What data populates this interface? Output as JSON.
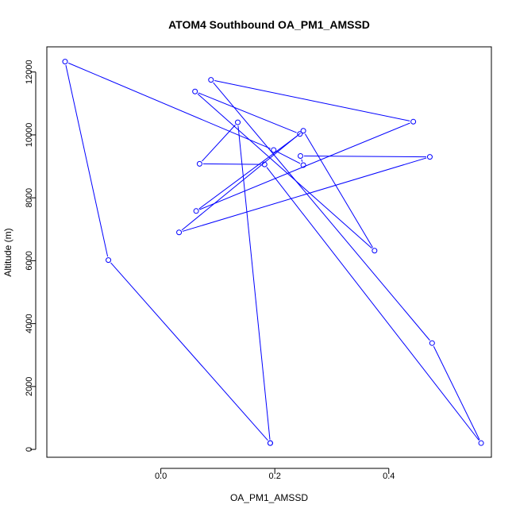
{
  "chart_data": {
    "type": "line",
    "title": "ATOM4 Southbound OA_PM1_AMSSD",
    "xlabel": "OA_PM1_AMSSD",
    "ylabel": "Altitude (m)",
    "xlim": [
      -0.2,
      0.58
    ],
    "ylim": [
      -250,
      12800
    ],
    "xticks": [
      0.0,
      0.2,
      0.4
    ],
    "xtick_labels": [
      "0.0",
      "0.2",
      "0.4"
    ],
    "yticks": [
      0,
      2000,
      4000,
      6000,
      8000,
      10000,
      12000
    ],
    "ytick_labels": [
      "0",
      "2000",
      "4000",
      "6000",
      "8000",
      "10000",
      "12000"
    ],
    "grid": false,
    "series": [
      {
        "color": "#0000ff",
        "marker": "open-circle",
        "points": [
          {
            "x": 0.192,
            "y": 200
          },
          {
            "x": 0.135,
            "y": 10400
          },
          {
            "x": 0.068,
            "y": 9080
          },
          {
            "x": 0.182,
            "y": 9060
          },
          {
            "x": 0.562,
            "y": 200
          },
          {
            "x": 0.476,
            "y": 3380
          },
          {
            "x": 0.088,
            "y": 11750
          },
          {
            "x": 0.443,
            "y": 10420
          },
          {
            "x": 0.062,
            "y": 7580
          },
          {
            "x": 0.244,
            "y": 10030
          },
          {
            "x": 0.06,
            "y": 11380
          },
          {
            "x": 0.375,
            "y": 6320
          },
          {
            "x": 0.25,
            "y": 10130
          },
          {
            "x": 0.032,
            "y": 6900
          },
          {
            "x": 0.472,
            "y": 9300
          },
          {
            "x": 0.245,
            "y": 9330
          },
          {
            "x": 0.25,
            "y": 9040
          },
          {
            "x": 0.198,
            "y": 9520
          },
          {
            "x": -0.168,
            "y": 12330
          },
          {
            "x": -0.092,
            "y": 6020
          },
          {
            "x": 0.192,
            "y": 200
          }
        ]
      }
    ]
  }
}
